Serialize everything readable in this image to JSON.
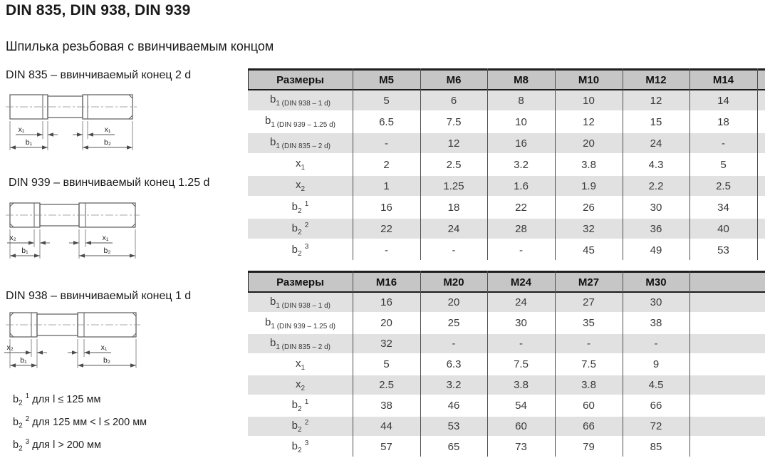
{
  "page": {
    "title": "DIN 835, DIN 938, DIN 939",
    "subtitle": "Шпилька резьбовая с ввинчиваемым концом"
  },
  "drawings": [
    {
      "caption": "DIN 835 – ввинчиваемый конец 2 d",
      "labels": {
        "x_left": "x₁",
        "x_right": "x₁",
        "b_left": "b₁",
        "b_right": "b₂"
      }
    },
    {
      "caption": "DIN 939 – ввинчиваемый конец 1.25 d",
      "labels": {
        "x_left": "x₂",
        "x_right": "x₁",
        "b_left": "b₁",
        "b_right": "b₂"
      }
    },
    {
      "caption": "DIN 938 – ввинчиваемый конец 1 d",
      "labels": {
        "x_left": "x₂",
        "x_right": "x₁",
        "b_left": "b₁",
        "b_right": "b₂"
      }
    }
  ],
  "footnotes": [
    {
      "base": "b",
      "sub": "2",
      "sup": "1",
      "text": "для l ≤ 125 мм"
    },
    {
      "base": "b",
      "sub": "2",
      "sup": "2",
      "text": "для 125 мм < l ≤ 200 мм"
    },
    {
      "base": "b",
      "sub": "2",
      "sup": "3",
      "text": "для l > 200 мм"
    }
  ],
  "colors": {
    "header_bg": "#c6c6c6",
    "stripe_bg": "#e1e1e1",
    "border_dark": "#1f1f1f",
    "grid_line": "#4f4f4f"
  },
  "tables": [
    {
      "header": [
        "Размеры",
        "M5",
        "M6",
        "M8",
        "M10",
        "M12",
        "M14",
        ""
      ],
      "rows": [
        {
          "label": {
            "base": "b",
            "sub": "1 (DIN 938 – 1 d)"
          },
          "values": [
            "5",
            "6",
            "8",
            "10",
            "12",
            "14",
            ""
          ]
        },
        {
          "label": {
            "base": "b",
            "sub": "1 (DIN 939 – 1.25 d)"
          },
          "values": [
            "6.5",
            "7.5",
            "10",
            "12",
            "15",
            "18",
            ""
          ]
        },
        {
          "label": {
            "base": "b",
            "sub": "1 (DIN 835 – 2 d)"
          },
          "values": [
            "-",
            "12",
            "16",
            "20",
            "24",
            "-",
            ""
          ]
        },
        {
          "label": {
            "base": "x",
            "sub": "1"
          },
          "values": [
            "2",
            "2.5",
            "3.2",
            "3.8",
            "4.3",
            "5",
            ""
          ]
        },
        {
          "label": {
            "base": "x",
            "sub": "2"
          },
          "values": [
            "1",
            "1.25",
            "1.6",
            "1.9",
            "2.2",
            "2.5",
            ""
          ]
        },
        {
          "label": {
            "base": "b",
            "sub": "2",
            "sup": "1"
          },
          "values": [
            "16",
            "18",
            "22",
            "26",
            "30",
            "34",
            ""
          ]
        },
        {
          "label": {
            "base": "b",
            "sub": "2",
            "sup": "2"
          },
          "values": [
            "22",
            "24",
            "28",
            "32",
            "36",
            "40",
            ""
          ]
        },
        {
          "label": {
            "base": "b",
            "sub": "2",
            "sup": "3"
          },
          "values": [
            "-",
            "-",
            "-",
            "45",
            "49",
            "53",
            ""
          ]
        }
      ]
    },
    {
      "header": [
        "Размеры",
        "M16",
        "M20",
        "M24",
        "M27",
        "M30",
        ""
      ],
      "rows": [
        {
          "label": {
            "base": "b",
            "sub": "1 (DIN 938 – 1 d)"
          },
          "values": [
            "16",
            "20",
            "24",
            "27",
            "30",
            ""
          ]
        },
        {
          "label": {
            "base": "b",
            "sub": "1 (DIN 939 – 1.25 d)"
          },
          "values": [
            "20",
            "25",
            "30",
            "35",
            "38",
            ""
          ]
        },
        {
          "label": {
            "base": "b",
            "sub": "1 (DIN 835 – 2 d)"
          },
          "values": [
            "32",
            "-",
            "-",
            "-",
            "-",
            ""
          ]
        },
        {
          "label": {
            "base": "x",
            "sub": "1"
          },
          "values": [
            "5",
            "6.3",
            "7.5",
            "7.5",
            "9",
            ""
          ]
        },
        {
          "label": {
            "base": "x",
            "sub": "2"
          },
          "values": [
            "2.5",
            "3.2",
            "3.8",
            "3.8",
            "4.5",
            ""
          ]
        },
        {
          "label": {
            "base": "b",
            "sub": "2",
            "sup": "1"
          },
          "values": [
            "38",
            "46",
            "54",
            "60",
            "66",
            ""
          ]
        },
        {
          "label": {
            "base": "b",
            "sub": "2",
            "sup": "2"
          },
          "values": [
            "44",
            "53",
            "60",
            "66",
            "72",
            ""
          ]
        },
        {
          "label": {
            "base": "b",
            "sub": "2",
            "sup": "3"
          },
          "values": [
            "57",
            "65",
            "73",
            "79",
            "85",
            ""
          ]
        }
      ]
    }
  ]
}
